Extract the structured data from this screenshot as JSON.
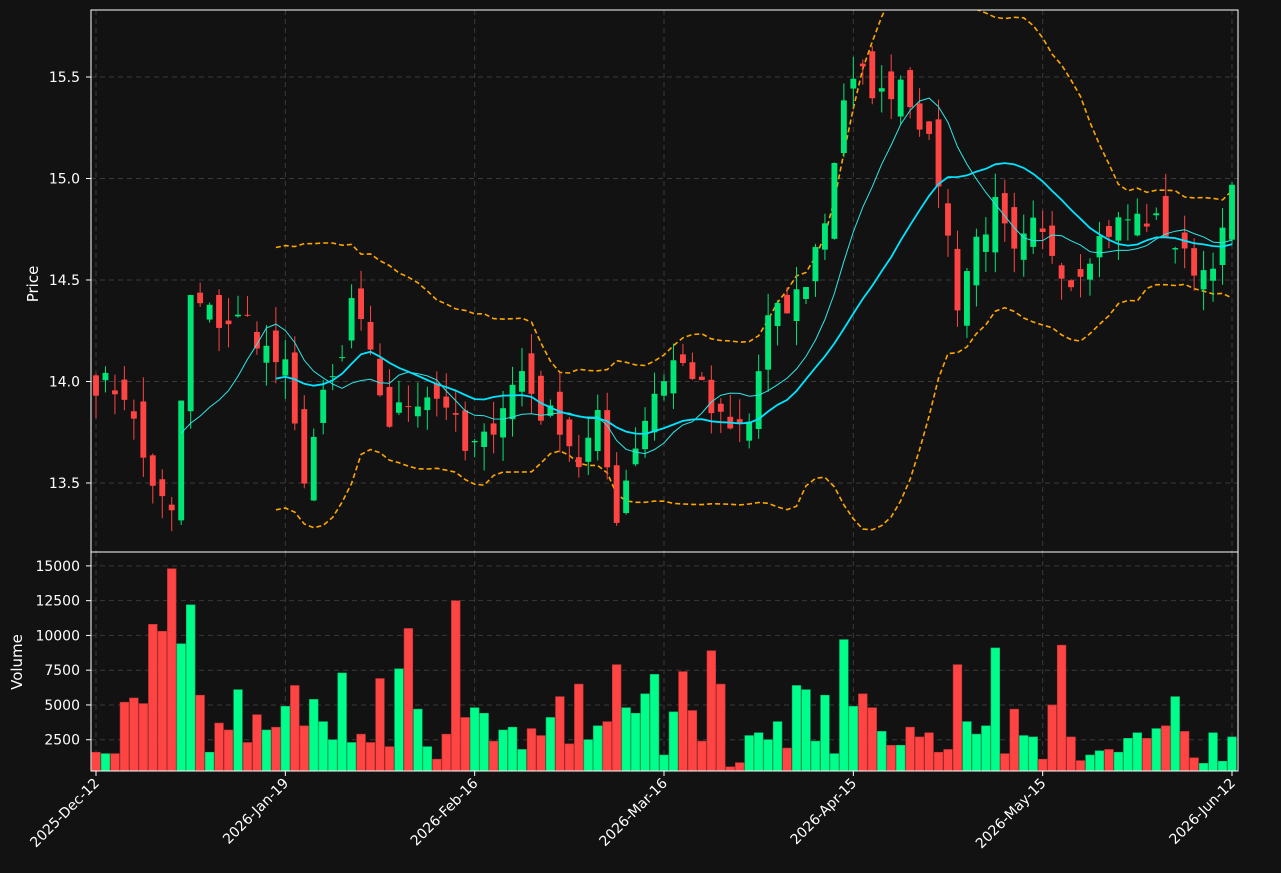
{
  "colors": {
    "background": "#121212",
    "up": "#00e676",
    "down": "#ff4444",
    "volume_up": "#00ff8a",
    "ma_fast": "#2ee6e6",
    "ma_slow": "#00e5ff",
    "bollinger": "#ffa500",
    "grid": "#3a3a3a",
    "frame": "#ffffff"
  },
  "chart_data": [
    {
      "type": "candlestick",
      "ylabel": "Price",
      "ylim": [
        13.16,
        15.83
      ],
      "yticks": [
        "13.5",
        "14.0",
        "14.5",
        "15.0",
        "15.5"
      ],
      "grid": true,
      "series": [
        {
          "kind": "ohlc",
          "open_close_high_low": "candles"
        },
        {
          "kind": "ma",
          "window": "short"
        },
        {
          "kind": "ma",
          "window": "long"
        },
        {
          "kind": "bollinger"
        }
      ]
    },
    {
      "type": "bar",
      "ylabel": "Volume",
      "ylim": [
        250,
        16000
      ],
      "yticks": [
        "2500",
        "5000",
        "7500",
        "10000",
        "12500",
        "15000"
      ],
      "grid": true
    }
  ],
  "xaxis": {
    "start_date": "2025-12-12",
    "tick_labels": [
      "2025-Dec-12",
      "2026-Jan-19",
      "2026-Feb-16",
      "2026-Mar-16",
      "2026-Apr-15",
      "2026-May-15",
      "2026-Jun-12"
    ],
    "tick_index": [
      0,
      20,
      40,
      60,
      80,
      100,
      120
    ]
  },
  "anchors": [
    [
      0,
      14.0
    ],
    [
      3,
      13.95
    ],
    [
      5,
      13.62
    ],
    [
      7,
      13.4
    ],
    [
      8,
      13.33
    ],
    [
      9,
      13.9
    ],
    [
      10,
      14.4
    ],
    [
      13,
      14.3
    ],
    [
      16,
      14.3
    ],
    [
      18,
      14.15
    ],
    [
      20,
      14.05
    ],
    [
      21,
      13.75
    ],
    [
      22,
      13.55
    ],
    [
      24,
      13.9
    ],
    [
      26,
      14.1
    ],
    [
      27,
      14.4
    ],
    [
      29,
      14.1
    ],
    [
      31,
      13.8
    ],
    [
      33,
      13.9
    ],
    [
      35,
      13.95
    ],
    [
      37,
      13.9
    ],
    [
      39,
      13.65
    ],
    [
      41,
      13.7
    ],
    [
      43,
      13.9
    ],
    [
      45,
      14.05
    ],
    [
      47,
      13.85
    ],
    [
      49,
      13.8
    ],
    [
      51,
      13.6
    ],
    [
      53,
      13.8
    ],
    [
      55,
      13.35
    ],
    [
      57,
      13.7
    ],
    [
      59,
      13.95
    ],
    [
      61,
      14.1
    ],
    [
      63,
      14.05
    ],
    [
      65,
      13.85
    ],
    [
      67,
      13.75
    ],
    [
      69,
      13.8
    ],
    [
      71,
      14.3
    ],
    [
      73,
      14.35
    ],
    [
      75,
      14.5
    ],
    [
      77,
      14.8
    ],
    [
      79,
      15.4
    ],
    [
      81,
      15.5
    ],
    [
      83,
      15.4
    ],
    [
      85,
      15.5
    ],
    [
      87,
      15.3
    ],
    [
      89,
      15.0
    ],
    [
      91,
      14.4
    ],
    [
      93,
      14.7
    ],
    [
      95,
      14.85
    ],
    [
      97,
      14.6
    ],
    [
      99,
      14.75
    ],
    [
      101,
      14.65
    ],
    [
      103,
      14.5
    ],
    [
      105,
      14.65
    ],
    [
      107,
      14.75
    ],
    [
      109,
      14.8
    ],
    [
      111,
      14.8
    ],
    [
      113,
      14.75
    ],
    [
      115,
      14.6
    ],
    [
      117,
      14.55
    ],
    [
      119,
      14.7
    ],
    [
      120,
      14.95
    ]
  ],
  "volumes": [
    1600,
    1500,
    1500,
    5200,
    5500,
    5100,
    10800,
    10300,
    14800,
    9400,
    12200,
    5700,
    1600,
    3700,
    3200,
    6100,
    2300,
    4300,
    3200,
    3400,
    4900,
    6400,
    3500,
    5400,
    3800,
    2500,
    7300,
    2300,
    2900,
    2300,
    6900,
    2000,
    7600,
    10500,
    4700,
    2000,
    1100,
    2900,
    12500,
    4100,
    4800,
    4400,
    2400,
    3200,
    3400,
    1800,
    3300,
    2800,
    4100,
    5600,
    2200,
    6500,
    2500,
    3500,
    3800,
    7900,
    4800,
    4400,
    5800,
    7200,
    1400,
    4500,
    7400,
    4600,
    2400,
    8900,
    6500,
    550,
    850,
    2800,
    3000,
    2500,
    3800,
    1900,
    6400,
    6100,
    2400,
    5700,
    1500,
    9700,
    4900,
    5800,
    4800,
    3100,
    2100,
    2100,
    3400,
    2700,
    3000,
    1600,
    1800,
    7900,
    3800,
    2900,
    3500,
    9100,
    1500,
    4700,
    2800,
    2700,
    1100,
    5000,
    9300,
    2700,
    1000,
    1400,
    1700,
    1800,
    1600,
    2600,
    3000,
    2600,
    3300,
    3500,
    5600,
    3100,
    1200,
    800,
    3000,
    950,
    2700
  ]
}
